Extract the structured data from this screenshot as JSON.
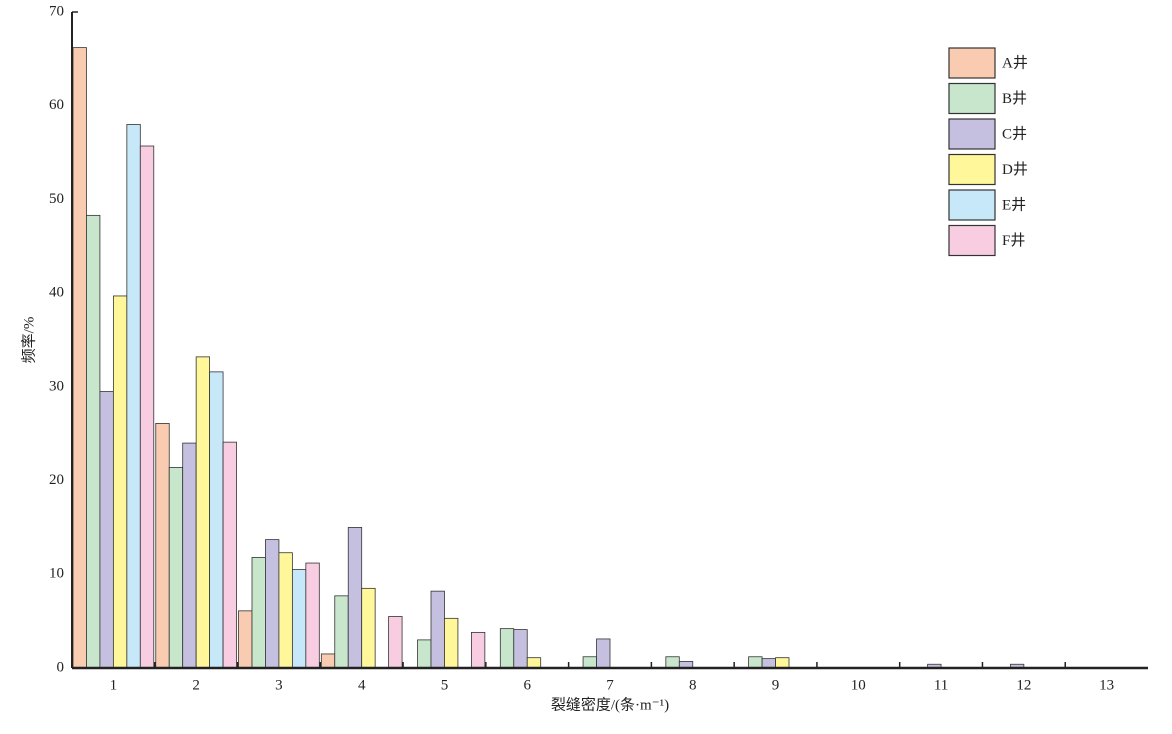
{
  "chart_data": {
    "type": "bar",
    "xlabel": "裂缝密度/(条·m⁻¹)",
    "ylabel": "频率/%",
    "categories": [
      "1",
      "2",
      "3",
      "4",
      "5",
      "6",
      "7",
      "8",
      "9",
      "10",
      "11",
      "12",
      "13"
    ],
    "series": [
      {
        "name": "A井",
        "color": "#f9cbb0",
        "values": [
          66.2,
          26.1,
          6.1,
          1.5,
          0,
          0,
          0,
          0,
          0,
          0,
          0,
          0,
          0
        ]
      },
      {
        "name": "B井",
        "color": "#c8e6cc",
        "values": [
          48.3,
          21.4,
          11.8,
          7.7,
          3.0,
          4.2,
          1.2,
          1.2,
          1.2,
          0,
          0,
          0,
          0
        ]
      },
      {
        "name": "C井",
        "color": "#c5c0e0",
        "values": [
          29.5,
          24.0,
          13.7,
          15.0,
          8.2,
          4.1,
          3.1,
          0.7,
          1.0,
          0,
          0.4,
          0.4,
          0
        ]
      },
      {
        "name": "D井",
        "color": "#fff799",
        "values": [
          39.7,
          33.2,
          12.3,
          8.5,
          5.3,
          1.1,
          0,
          0,
          1.1,
          0,
          0,
          0,
          0
        ]
      },
      {
        "name": "E井",
        "color": "#c6e8f8",
        "values": [
          58.0,
          31.6,
          10.5,
          0,
          0,
          0,
          0,
          0,
          0,
          0,
          0,
          0,
          0
        ]
      },
      {
        "name": "F井",
        "color": "#f9cde1",
        "values": [
          55.7,
          24.1,
          11.2,
          5.5,
          3.8,
          0,
          0,
          0,
          0,
          0,
          0,
          0,
          0
        ]
      }
    ],
    "ylim": [
      0,
      70
    ],
    "yticks": [
      0,
      10,
      20,
      30,
      40,
      50,
      60,
      70
    ],
    "legend": "upper-right",
    "grid": false
  }
}
